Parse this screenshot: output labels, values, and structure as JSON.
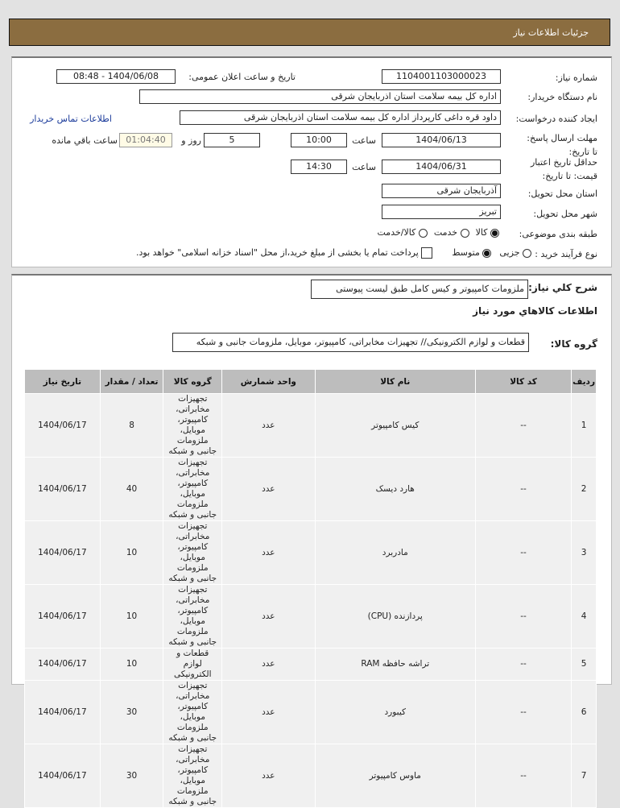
{
  "title": "جزئیات اطلاعات نیاز",
  "form": {
    "need_number_label": "شماره نیاز:",
    "need_number": "1104001103000023",
    "announce_label": "تاریخ و ساعت اعلان عمومی:",
    "announce": "1404/06/08 - 08:48",
    "buyer_label": "نام دستگاه خریدار:",
    "buyer": "اداره کل بیمه سلامت استان اذربایجان شرقی",
    "creator_label": "ایجاد کننده درخواست:",
    "creator": "داود قره داغی کارپرداز اداره کل بیمه سلامت استان اذربایجان شرقی",
    "contact_link": "اطلاعات تماس خریدار",
    "deadline_label": "مهلت ارسال پاسخ: تا تاریخ:",
    "deadline_date": "1404/06/13",
    "time_label": "ساعت",
    "deadline_time": "10:00",
    "days": "5",
    "days_label": "روز و",
    "remaining": "01:04:40",
    "remaining_label": "ساعت باقي مانده",
    "validity_label": "حداقل تاریخ اعتبار قیمت: تا تاریخ:",
    "validity_date": "1404/06/31",
    "validity_time": "14:30",
    "province_label": "استان محل تحویل:",
    "province": "آذربایجان شرقی",
    "city_label": "شهر محل تحویل:",
    "city": "تبریز",
    "category_label": "طبقه بندی موضوعی:",
    "category_options": [
      "کالا",
      "خدمت",
      "کالا/خدمت"
    ],
    "category_selected": "کالا",
    "process_label": "نوع فرآیند خرید :",
    "process_options": [
      "جزیی",
      "متوسط"
    ],
    "process_selected": "متوسط",
    "payment_note": "پرداخت تمام یا بخشی از مبلغ خرید،از محل \"اسناد خزانه اسلامی\" خواهد بود."
  },
  "details": {
    "summary_label": "شرح کلي نیاز:",
    "summary": "ملزومات کامپیوتر و کیس کامل طبق لیست پیوستی",
    "goods_heading": "اطلاعات کالاهاي مورد نیاز",
    "group_label": "گروه کالا:",
    "group": "قطعات و لوازم الکترونیکی// تجهیزات مخابراتی، کامپیوتر، موبایل، ملزومات جانبی و شبکه",
    "columns": [
      "ردیف",
      "کد کالا",
      "نام کالا",
      "واحد شمارش",
      "گروه کالا",
      "تعداد / مقدار",
      "تاریخ نیاز"
    ],
    "rows": [
      [
        "1",
        "--",
        "کیس کامپیوتر",
        "عدد",
        "تجهیزات مخابراتی، کامپیوتر، موبایل، ملزومات جانبی و شبکه",
        "8",
        "1404/06/17"
      ],
      [
        "2",
        "--",
        "هارد دیسک",
        "عدد",
        "تجهیزات مخابراتی، کامپیوتر، موبایل، ملزومات جانبی و شبکه",
        "40",
        "1404/06/17"
      ],
      [
        "3",
        "--",
        "مادربرد",
        "عدد",
        "تجهیزات مخابراتی، کامپیوتر، موبایل، ملزومات جانبی و شبکه",
        "10",
        "1404/06/17"
      ],
      [
        "4",
        "--",
        "پردازنده (CPU)",
        "عدد",
        "تجهیزات مخابراتی، کامپیوتر، موبایل، ملزومات جانبی و شبکه",
        "10",
        "1404/06/17"
      ],
      [
        "5",
        "--",
        "تراشه حافظه RAM",
        "عدد",
        "قطعات و لوازم الکترونیکی",
        "10",
        "1404/06/17"
      ],
      [
        "6",
        "--",
        "کیبورد",
        "عدد",
        "تجهیزات مخابراتی، کامپیوتر، موبایل، ملزومات جانبی و شبکه",
        "30",
        "1404/06/17"
      ],
      [
        "7",
        "--",
        "ماوس کامپیوتر",
        "عدد",
        "تجهیزات مخابراتی، کامپیوتر، موبایل، ملزومات جانبی و شبکه",
        "30",
        "1404/06/17"
      ]
    ]
  }
}
